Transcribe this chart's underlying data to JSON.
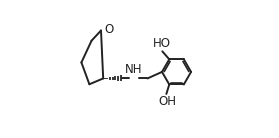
{
  "bg_color": "#ffffff",
  "line_color": "#222222",
  "line_width": 1.4,
  "font_size": 8.5,
  "figsize": [
    2.79,
    1.38
  ],
  "dpi": 100,
  "xlim": [
    0.0,
    1.0
  ],
  "ylim": [
    0.05,
    1.0
  ]
}
